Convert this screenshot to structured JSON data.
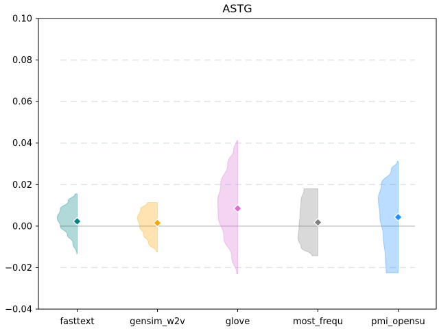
{
  "chart_data": {
    "type": "violin",
    "title": "ASTG",
    "xlabel": "",
    "ylabel": "",
    "ylim": [
      -0.04,
      0.1
    ],
    "yticks": [
      -0.04,
      -0.02,
      0.0,
      0.02,
      0.04,
      0.06,
      0.08,
      0.1
    ],
    "ytick_labels": [
      "−0.04",
      "−0.02",
      "0.00",
      "0.02",
      "0.04",
      "0.06",
      "0.08",
      "0.10"
    ],
    "grid": true,
    "reference_line": 0.0,
    "categories": [
      "fasttext",
      "gensim_w2v",
      "glove",
      "most_frequ",
      "pmi_opensu"
    ],
    "series": [
      {
        "category": "fasttext",
        "color": "#008080",
        "mean": 0.0023,
        "min": -0.0133,
        "max": 0.0155,
        "shape": [
          [
            -0.0133,
            0.02
          ],
          [
            -0.008,
            0.22
          ],
          [
            -0.004,
            0.5
          ],
          [
            0.0,
            0.85
          ],
          [
            0.004,
            1.0
          ],
          [
            0.008,
            0.85
          ],
          [
            0.012,
            0.45
          ],
          [
            0.0155,
            0.1
          ]
        ]
      },
      {
        "category": "gensim_w2v",
        "color": "#FFA500",
        "mean": 0.0015,
        "min": -0.0125,
        "max": 0.0113,
        "shape": [
          [
            -0.0125,
            0.05
          ],
          [
            -0.008,
            0.45
          ],
          [
            -0.004,
            0.7
          ],
          [
            0.0,
            0.9
          ],
          [
            0.004,
            1.0
          ],
          [
            0.008,
            0.85
          ],
          [
            0.0113,
            0.5
          ]
        ]
      },
      {
        "category": "glove",
        "color": "#DA70D6",
        "mean": 0.0085,
        "min": -0.023,
        "max": 0.0412,
        "shape": [
          [
            -0.023,
            0.05
          ],
          [
            -0.015,
            0.3
          ],
          [
            -0.005,
            0.7
          ],
          [
            0.005,
            0.98
          ],
          [
            0.012,
            1.0
          ],
          [
            0.02,
            0.85
          ],
          [
            0.03,
            0.5
          ],
          [
            0.037,
            0.2
          ],
          [
            0.0412,
            0.05
          ]
        ]
      },
      {
        "category": "most_frequ",
        "color": "#808080",
        "mean": 0.0018,
        "min": -0.0143,
        "max": 0.018,
        "shape": [
          [
            -0.0143,
            0.3
          ],
          [
            -0.01,
            0.85
          ],
          [
            -0.006,
            1.0
          ],
          [
            0.0,
            0.95
          ],
          [
            0.006,
            0.9
          ],
          [
            0.012,
            0.85
          ],
          [
            0.018,
            0.7
          ]
        ]
      },
      {
        "category": "pmi_opensu",
        "color": "#1E90FF",
        "mean": 0.0043,
        "min": -0.0225,
        "max": 0.0312,
        "shape": [
          [
            -0.0225,
            0.6
          ],
          [
            -0.015,
            0.65
          ],
          [
            -0.005,
            0.75
          ],
          [
            0.005,
            0.92
          ],
          [
            0.013,
            1.0
          ],
          [
            0.02,
            0.85
          ],
          [
            0.027,
            0.35
          ],
          [
            0.0312,
            0.05
          ]
        ]
      }
    ]
  }
}
